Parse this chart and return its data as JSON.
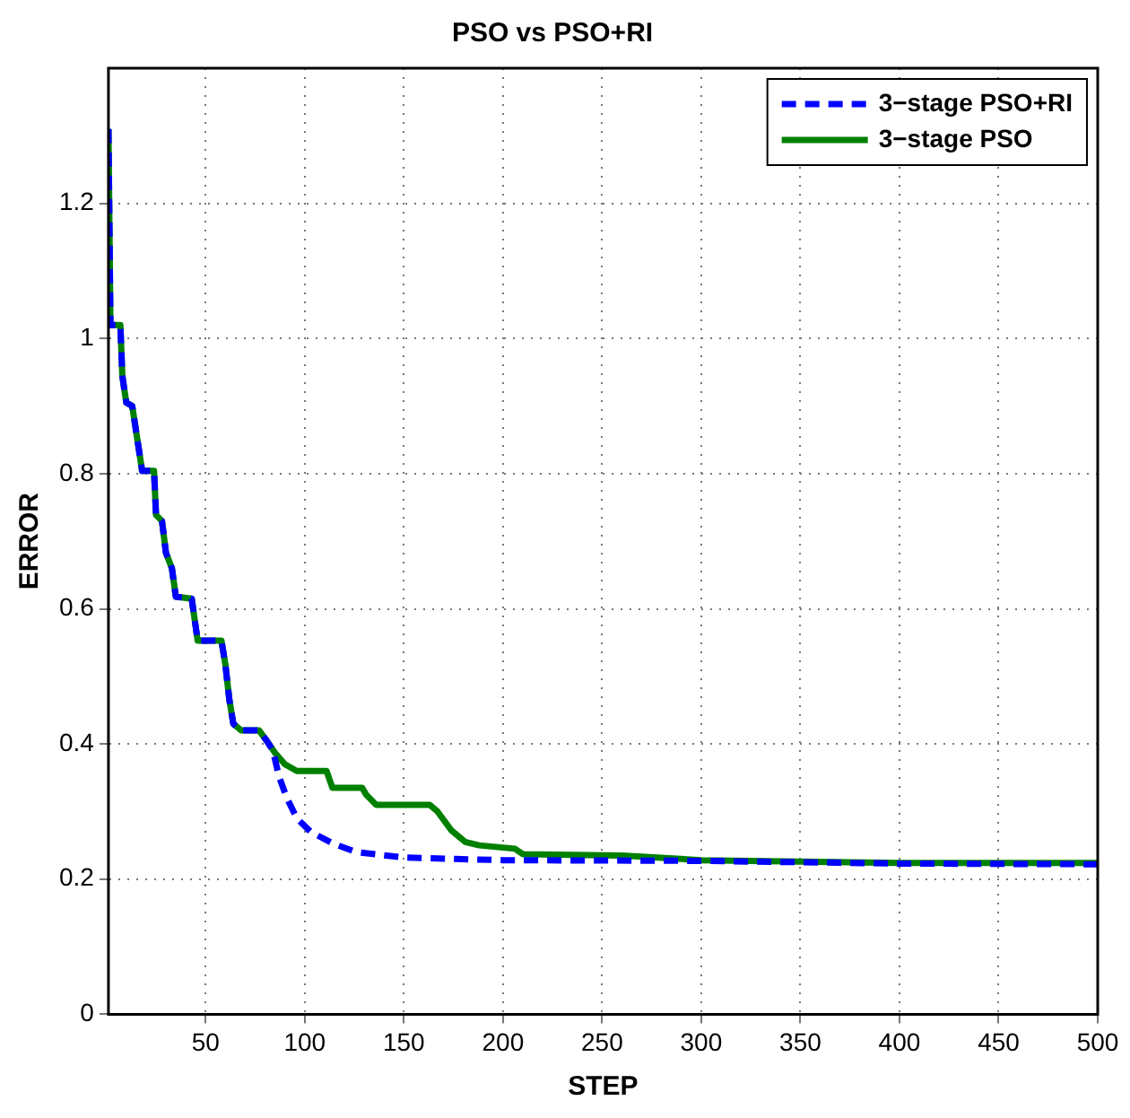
{
  "chart_data": {
    "type": "line",
    "title": "PSO vs PSO+RI",
    "xlabel": "STEP",
    "ylabel": "ERROR",
    "xlim": [
      1,
      500
    ],
    "ylim": [
      0,
      1.4
    ],
    "xticks": [
      50,
      100,
      150,
      200,
      250,
      300,
      350,
      400,
      450,
      500
    ],
    "yticks": [
      0,
      0.2,
      0.4,
      0.6,
      0.8,
      1,
      1.2
    ],
    "grid": true,
    "legend": "top right",
    "marker": "none",
    "series": [
      {
        "name": "3−stage PSO+RI",
        "color": "#0000ff",
        "line_style": "dashed",
        "x": [
          1,
          2,
          7,
          8,
          10,
          13,
          18,
          24,
          25,
          28,
          30,
          33,
          35,
          43,
          46,
          58,
          60,
          62,
          64,
          68,
          77,
          81,
          84,
          87,
          91,
          96,
          103,
          114,
          126,
          150,
          200,
          300,
          400,
          500
        ],
        "values": [
          1.31,
          1.02,
          1.02,
          0.945,
          0.905,
          0.9,
          0.804,
          0.804,
          0.739,
          0.73,
          0.683,
          0.66,
          0.618,
          0.615,
          0.553,
          0.553,
          0.517,
          0.465,
          0.43,
          0.42,
          0.42,
          0.404,
          0.39,
          0.352,
          0.32,
          0.29,
          0.27,
          0.253,
          0.24,
          0.232,
          0.228,
          0.227,
          0.223,
          0.222
        ]
      },
      {
        "name": "3−stage PSO",
        "color": "#008000",
        "line_style": "solid",
        "x": [
          1,
          2,
          7,
          8,
          10,
          13,
          18,
          24,
          25,
          28,
          30,
          33,
          35,
          43,
          46,
          58,
          60,
          62,
          64,
          68,
          77,
          81,
          85,
          90,
          96,
          111,
          114,
          129,
          131,
          136,
          163,
          167,
          174,
          181,
          188,
          206,
          210,
          260,
          300,
          400,
          500
        ],
        "values": [
          1.31,
          1.02,
          1.02,
          0.945,
          0.905,
          0.9,
          0.804,
          0.804,
          0.739,
          0.73,
          0.683,
          0.66,
          0.618,
          0.615,
          0.553,
          0.553,
          0.517,
          0.465,
          0.43,
          0.42,
          0.42,
          0.404,
          0.387,
          0.37,
          0.36,
          0.36,
          0.335,
          0.335,
          0.325,
          0.31,
          0.31,
          0.3,
          0.272,
          0.255,
          0.25,
          0.245,
          0.237,
          0.235,
          0.228,
          0.224,
          0.224
        ]
      }
    ]
  }
}
